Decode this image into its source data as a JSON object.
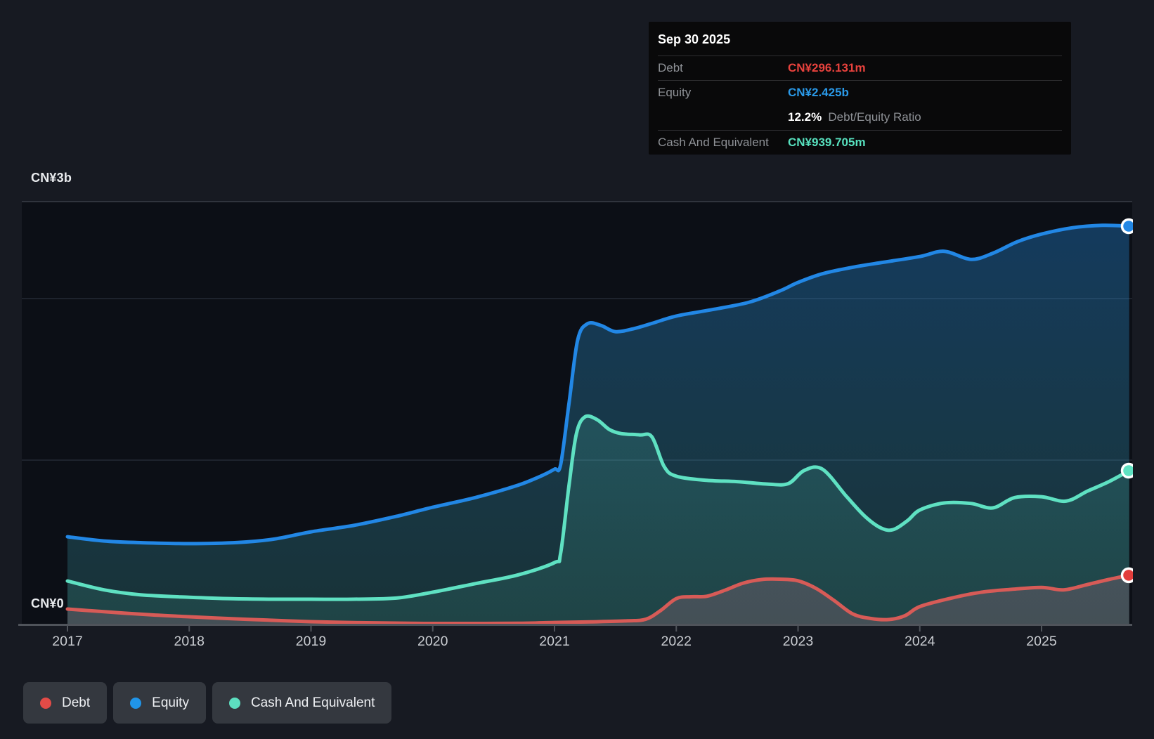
{
  "tooltip": {
    "date": "Sep 30 2025",
    "debt_label": "Debt",
    "debt_value": "CN¥296.131m",
    "debt_color": "#e8423d",
    "equity_label": "Equity",
    "equity_value": "CN¥2.425b",
    "equity_color": "#2a99e8",
    "ratio_value": "12.2%",
    "ratio_label": "Debt/Equity Ratio",
    "cash_label": "Cash And Equivalent",
    "cash_value": "CN¥939.705m",
    "cash_color": "#57e0be"
  },
  "legend": {
    "items": [
      {
        "label": "Debt",
        "color": "#e34b47"
      },
      {
        "label": "Equity",
        "color": "#2095e9"
      },
      {
        "label": "Cash And Equivalent",
        "color": "#5ddfc0"
      }
    ]
  },
  "chart_data": {
    "type": "area",
    "unit": "CN¥ billions",
    "x_ticks": [
      2017,
      2018,
      2019,
      2020,
      2021,
      2022,
      2023,
      2024,
      2025
    ],
    "y_axis": {
      "top_label": "CN¥3b",
      "bottom_label": "CN¥0",
      "ylim": [
        0,
        3
      ],
      "grid_values": [
        2,
        1
      ]
    },
    "legend_position": "bottom-left",
    "series": [
      {
        "name": "Equity",
        "line_color": "#2287e5",
        "marker_color": "#2287e5",
        "fill_top": "rgba(33,133,224,0.36)",
        "fill_bottom": "rgba(70,190,190,0.20)",
        "points": [
          [
            2017.0,
            0.531
          ],
          [
            2017.3,
            0.505
          ],
          [
            2017.6,
            0.495
          ],
          [
            2018.0,
            0.489
          ],
          [
            2018.4,
            0.496
          ],
          [
            2018.7,
            0.517
          ],
          [
            2019.0,
            0.561
          ],
          [
            2019.35,
            0.6
          ],
          [
            2019.7,
            0.655
          ],
          [
            2020.0,
            0.711
          ],
          [
            2020.35,
            0.77
          ],
          [
            2020.7,
            0.845
          ],
          [
            2020.9,
            0.905
          ],
          [
            2021.0,
            0.943
          ],
          [
            2021.05,
            0.97
          ],
          [
            2021.12,
            1.35
          ],
          [
            2021.19,
            1.73
          ],
          [
            2021.27,
            1.83
          ],
          [
            2021.38,
            1.82
          ],
          [
            2021.5,
            1.782
          ],
          [
            2021.65,
            1.8
          ],
          [
            2021.8,
            1.832
          ],
          [
            2022.0,
            1.877
          ],
          [
            2022.3,
            1.917
          ],
          [
            2022.6,
            1.962
          ],
          [
            2022.85,
            2.03
          ],
          [
            2023.0,
            2.082
          ],
          [
            2023.2,
            2.135
          ],
          [
            2023.45,
            2.175
          ],
          [
            2023.7,
            2.205
          ],
          [
            2024.0,
            2.24
          ],
          [
            2024.2,
            2.272
          ],
          [
            2024.42,
            2.223
          ],
          [
            2024.6,
            2.26
          ],
          [
            2024.8,
            2.33
          ],
          [
            2025.0,
            2.377
          ],
          [
            2025.25,
            2.415
          ],
          [
            2025.5,
            2.43
          ],
          [
            2025.72,
            2.425
          ]
        ],
        "end_value_label": "CN¥2.425b"
      },
      {
        "name": "Cash And Equivalent",
        "line_color": "#5fe1c2",
        "marker_color": "#5fe1c2",
        "fill_top": "rgba(95,225,194,0.20)",
        "fill_bottom": "rgba(95,225,194,0.10)",
        "points": [
          [
            2017.0,
            0.261
          ],
          [
            2017.3,
            0.207
          ],
          [
            2017.6,
            0.177
          ],
          [
            2018.0,
            0.162
          ],
          [
            2018.35,
            0.153
          ],
          [
            2018.7,
            0.15
          ],
          [
            2019.0,
            0.15
          ],
          [
            2019.35,
            0.15
          ],
          [
            2019.7,
            0.157
          ],
          [
            2020.0,
            0.193
          ],
          [
            2020.35,
            0.245
          ],
          [
            2020.7,
            0.298
          ],
          [
            2021.0,
            0.373
          ],
          [
            2021.05,
            0.43
          ],
          [
            2021.12,
            0.85
          ],
          [
            2021.18,
            1.16
          ],
          [
            2021.25,
            1.262
          ],
          [
            2021.35,
            1.245
          ],
          [
            2021.45,
            1.185
          ],
          [
            2021.55,
            1.16
          ],
          [
            2021.7,
            1.152
          ],
          [
            2021.8,
            1.14
          ],
          [
            2021.9,
            0.96
          ],
          [
            2022.0,
            0.9
          ],
          [
            2022.25,
            0.875
          ],
          [
            2022.5,
            0.867
          ],
          [
            2022.75,
            0.852
          ],
          [
            2022.92,
            0.855
          ],
          [
            2023.05,
            0.935
          ],
          [
            2023.2,
            0.943
          ],
          [
            2023.4,
            0.775
          ],
          [
            2023.55,
            0.655
          ],
          [
            2023.68,
            0.585
          ],
          [
            2023.78,
            0.574
          ],
          [
            2023.9,
            0.63
          ],
          [
            2024.0,
            0.694
          ],
          [
            2024.2,
            0.737
          ],
          [
            2024.42,
            0.734
          ],
          [
            2024.6,
            0.707
          ],
          [
            2024.78,
            0.77
          ],
          [
            2025.0,
            0.775
          ],
          [
            2025.2,
            0.748
          ],
          [
            2025.38,
            0.81
          ],
          [
            2025.55,
            0.866
          ],
          [
            2025.72,
            0.934
          ]
        ],
        "end_value_label": "CN¥939.705m"
      },
      {
        "name": "Debt",
        "line_color": "#d75b57",
        "marker_color": "#e23d3b",
        "fill_top": "rgba(215,125,150,0.26)",
        "fill_bottom": "rgba(215,125,150,0.20)",
        "points": [
          [
            2017.0,
            0.09
          ],
          [
            2017.35,
            0.071
          ],
          [
            2017.7,
            0.054
          ],
          [
            2018.0,
            0.043
          ],
          [
            2018.35,
            0.031
          ],
          [
            2018.7,
            0.021
          ],
          [
            2019.0,
            0.013
          ],
          [
            2019.4,
            0.007
          ],
          [
            2019.8,
            0.003
          ],
          [
            2020.2,
            0.002
          ],
          [
            2020.7,
            0.003
          ],
          [
            2021.0,
            0.008
          ],
          [
            2021.3,
            0.012
          ],
          [
            2021.6,
            0.018
          ],
          [
            2021.75,
            0.028
          ],
          [
            2021.87,
            0.08
          ],
          [
            2022.0,
            0.154
          ],
          [
            2022.12,
            0.165
          ],
          [
            2022.25,
            0.168
          ],
          [
            2022.4,
            0.205
          ],
          [
            2022.55,
            0.248
          ],
          [
            2022.7,
            0.27
          ],
          [
            2022.85,
            0.272
          ],
          [
            2023.0,
            0.262
          ],
          [
            2023.15,
            0.215
          ],
          [
            2023.3,
            0.14
          ],
          [
            2023.45,
            0.06
          ],
          [
            2023.6,
            0.032
          ],
          [
            2023.75,
            0.026
          ],
          [
            2023.88,
            0.05
          ],
          [
            2024.0,
            0.105
          ],
          [
            2024.25,
            0.155
          ],
          [
            2024.5,
            0.192
          ],
          [
            2024.75,
            0.21
          ],
          [
            2025.0,
            0.222
          ],
          [
            2025.18,
            0.207
          ],
          [
            2025.38,
            0.24
          ],
          [
            2025.55,
            0.27
          ],
          [
            2025.72,
            0.296
          ]
        ],
        "end_value_label": "CN¥296.131m"
      }
    ]
  }
}
